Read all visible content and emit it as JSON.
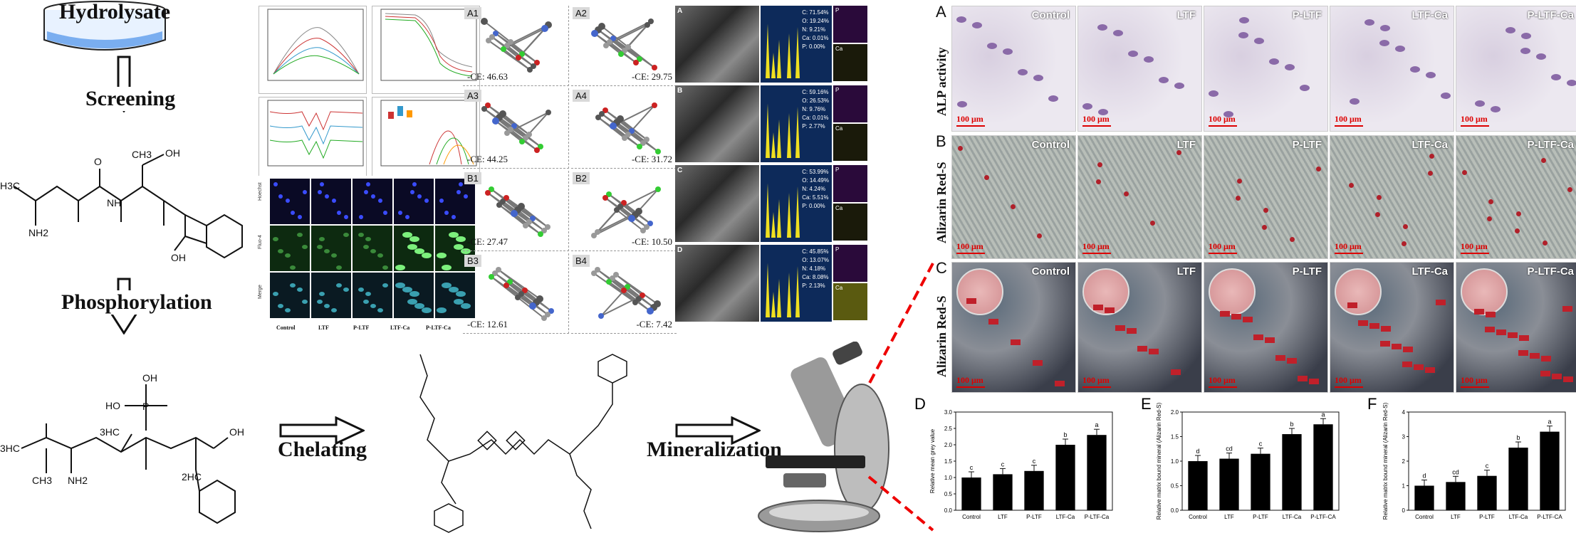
{
  "flow": {
    "hydrolysate": "Hydrolysate",
    "screening": "Screening",
    "phosphorylation": "Phosphorylation",
    "chelating": "Chelating",
    "mineralization": "Mineralization"
  },
  "dock": {
    "panels": [
      {
        "id": "A1",
        "ce": "-CE: 46.63"
      },
      {
        "id": "A2",
        "ce": "-CE: 29.75"
      },
      {
        "id": "A3",
        "ce": "-CE: 44.25"
      },
      {
        "id": "A4",
        "ce": "-CE: 31.72"
      },
      {
        "id": "B1",
        "ce": "-CE: 27.47"
      },
      {
        "id": "B2",
        "ce": "-CE: 10.50"
      },
      {
        "id": "B3",
        "ce": "-CE: 12.61"
      },
      {
        "id": "B4",
        "ce": "-CE: 7.42"
      }
    ]
  },
  "eds": {
    "panels": [
      {
        "id": "A",
        "lines": [
          "C: 71.54%",
          "O: 19.24%",
          "N: 9.21%",
          "Ca: 0.01%",
          "P: 0.00%"
        ],
        "maps": [
          "P",
          "Ca"
        ]
      },
      {
        "id": "B",
        "lines": [
          "C: 59.16%",
          "O: 26.53%",
          "N: 9.76%",
          "Ca: 0.01%",
          "P: 2.77%"
        ],
        "maps": [
          "P",
          "Ca"
        ]
      },
      {
        "id": "C",
        "lines": [
          "C: 53.99%",
          "O: 14.49%",
          "N: 4.24%",
          "Ca: 5.51%",
          "P: 0.00%"
        ],
        "maps": [
          "P",
          "Ca"
        ]
      },
      {
        "id": "D",
        "lines": [
          "C: 45.85%",
          "O: 13.07%",
          "N: 4.18%",
          "Ca: 8.08%",
          "P: 2.13%"
        ],
        "maps": [
          "P",
          "Ca"
        ]
      }
    ]
  },
  "fluorescence": {
    "columns": [
      "Control",
      "LTF",
      "P-LTF",
      "LTF-Ca",
      "P-LTF-Ca"
    ],
    "rows": [
      "Hoechst",
      "Fluo-4",
      "Merge"
    ]
  },
  "micro": {
    "columns": [
      "Control",
      "LTF",
      "P-LTF",
      "LTF-Ca",
      "P-LTF-Ca"
    ],
    "rows": [
      {
        "letter": "A",
        "title": "ALP activity"
      },
      {
        "letter": "B",
        "title": "Alizarin Red-S"
      },
      {
        "letter": "C",
        "title": "Alizarin Red-S"
      }
    ],
    "scale": "100 μm"
  },
  "chart_data": [
    {
      "type": "bar",
      "panel": "D",
      "categories": [
        "Control",
        "LTF",
        "P-LTF",
        "LTF-Ca",
        "P-LTF-Ca"
      ],
      "values": [
        1.0,
        1.1,
        1.2,
        2.0,
        2.3
      ],
      "letters": [
        "c",
        "c",
        "c",
        "b",
        "a"
      ],
      "ylabel": "Relative mean grey value",
      "ylim": [
        0,
        3.0
      ],
      "yticks": [
        "0.0",
        "0.5",
        "1.0",
        "1.5",
        "2.0",
        "2.5",
        "3.0"
      ]
    },
    {
      "type": "bar",
      "panel": "E",
      "categories": [
        "Control",
        "LTF",
        "P-LTF",
        "LTF-Ca",
        "P-LTF-CA"
      ],
      "values": [
        1.0,
        1.05,
        1.15,
        1.55,
        1.75
      ],
      "letters": [
        "d",
        "cd",
        "c",
        "b",
        "a"
      ],
      "ylabel": "Relative matrix bound mineral (Alizarin Red-S)",
      "ylim": [
        0,
        2.0
      ],
      "yticks": [
        "0.0",
        "0.5",
        "1.0",
        "1.5",
        "2.0"
      ]
    },
    {
      "type": "bar",
      "panel": "F",
      "categories": [
        "Control",
        "LTF",
        "P-LTF",
        "LTF-Ca",
        "P-LTF-CA"
      ],
      "values": [
        1.0,
        1.15,
        1.4,
        2.55,
        3.2
      ],
      "letters": [
        "d",
        "cd",
        "c",
        "b",
        "a"
      ],
      "ylabel": "Relative matrix bound mineral (Alizarin Red-S)",
      "ylim": [
        0,
        4.0
      ],
      "yticks": [
        "0",
        "1",
        "2",
        "3",
        "4"
      ]
    }
  ],
  "molecules": {
    "peptide_labels": [
      "H3C",
      "NH2",
      "OH",
      "CH3",
      "N",
      "H",
      "NH",
      "O",
      "OH"
    ],
    "phospho_labels": [
      "OH",
      "HO",
      "P",
      "O",
      "3HC",
      "3HC",
      "CH3",
      "NH2",
      "2HC",
      "OH",
      "N",
      "H"
    ]
  }
}
